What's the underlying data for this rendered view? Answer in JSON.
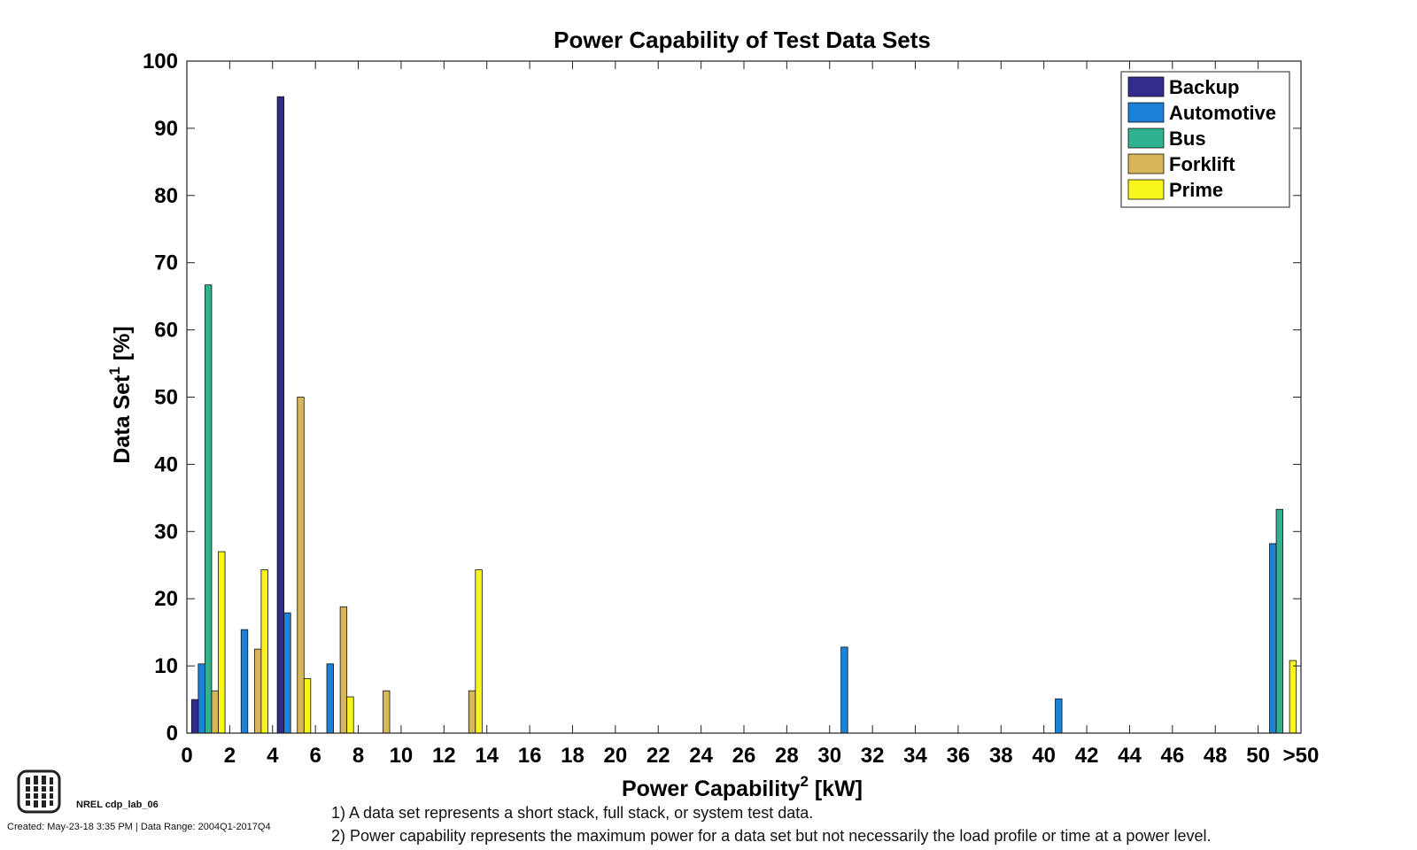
{
  "chart_data": {
    "type": "bar",
    "title": "Power Capability of Test Data Sets",
    "xlabel": {
      "base": "Power Capability",
      "sup": "2",
      "unit": " [kW]"
    },
    "ylabel": {
      "base": "Data Set",
      "sup": "1",
      "unit": " [%]"
    },
    "ylim": [
      0,
      100
    ],
    "yticks": [
      0,
      10,
      20,
      30,
      40,
      50,
      60,
      70,
      80,
      90,
      100
    ],
    "xlim": [
      0,
      52
    ],
    "xticks": [
      {
        "value": 0,
        "label": "0"
      },
      {
        "value": 2,
        "label": "2"
      },
      {
        "value": 4,
        "label": "4"
      },
      {
        "value": 6,
        "label": "6"
      },
      {
        "value": 8,
        "label": "8"
      },
      {
        "value": 10,
        "label": "10"
      },
      {
        "value": 12,
        "label": "12"
      },
      {
        "value": 14,
        "label": "14"
      },
      {
        "value": 16,
        "label": "16"
      },
      {
        "value": 18,
        "label": "18"
      },
      {
        "value": 20,
        "label": "20"
      },
      {
        "value": 22,
        "label": "22"
      },
      {
        "value": 24,
        "label": "24"
      },
      {
        "value": 26,
        "label": "26"
      },
      {
        "value": 28,
        "label": "28"
      },
      {
        "value": 30,
        "label": "30"
      },
      {
        "value": 32,
        "label": "32"
      },
      {
        "value": 34,
        "label": "34"
      },
      {
        "value": 36,
        "label": "36"
      },
      {
        "value": 38,
        "label": "38"
      },
      {
        "value": 40,
        "label": "40"
      },
      {
        "value": 42,
        "label": "42"
      },
      {
        "value": 44,
        "label": "44"
      },
      {
        "value": 46,
        "label": "46"
      },
      {
        "value": 48,
        "label": "48"
      },
      {
        "value": 50,
        "label": "50"
      },
      {
        "value": 52,
        "label": ">50"
      }
    ],
    "bin_width_kw": 2,
    "bin_centers": [
      1,
      3,
      5,
      7,
      9,
      13,
      31,
      41,
      51
    ],
    "series": [
      {
        "name": "Backup",
        "color": "#332c8f",
        "values": [
          5,
          0,
          94.7,
          0,
          0,
          0,
          0,
          0,
          0
        ]
      },
      {
        "name": "Automotive",
        "color": "#1b82d8",
        "values": [
          10.3,
          15.4,
          17.9,
          10.3,
          0,
          0,
          12.8,
          5.1,
          28.2
        ]
      },
      {
        "name": "Bus",
        "color": "#31b28e",
        "values": [
          66.7,
          0,
          0,
          0,
          0,
          0,
          0,
          0,
          33.3
        ]
      },
      {
        "name": "Forklift",
        "color": "#d8b65a",
        "values": [
          6.3,
          12.5,
          50,
          18.8,
          6.3,
          6.3,
          0,
          0,
          0
        ]
      },
      {
        "name": "Prime",
        "color": "#f8f51c",
        "values": [
          27,
          24.3,
          8.1,
          5.4,
          0,
          24.3,
          0,
          0,
          10.8
        ]
      }
    ],
    "legend_position": "top-right",
    "grid": false
  },
  "footer": {
    "lab_id": "NREL cdp_lab_06",
    "created": "Created: May-23-18  3:35 PM | Data Range: 2004Q1-2017Q4",
    "note1": "1) A data set represents a short stack, full stack, or system test data.",
    "note2": "2) Power capability represents the maximum power for a data set but not necessarily the load profile or time at a power level."
  }
}
